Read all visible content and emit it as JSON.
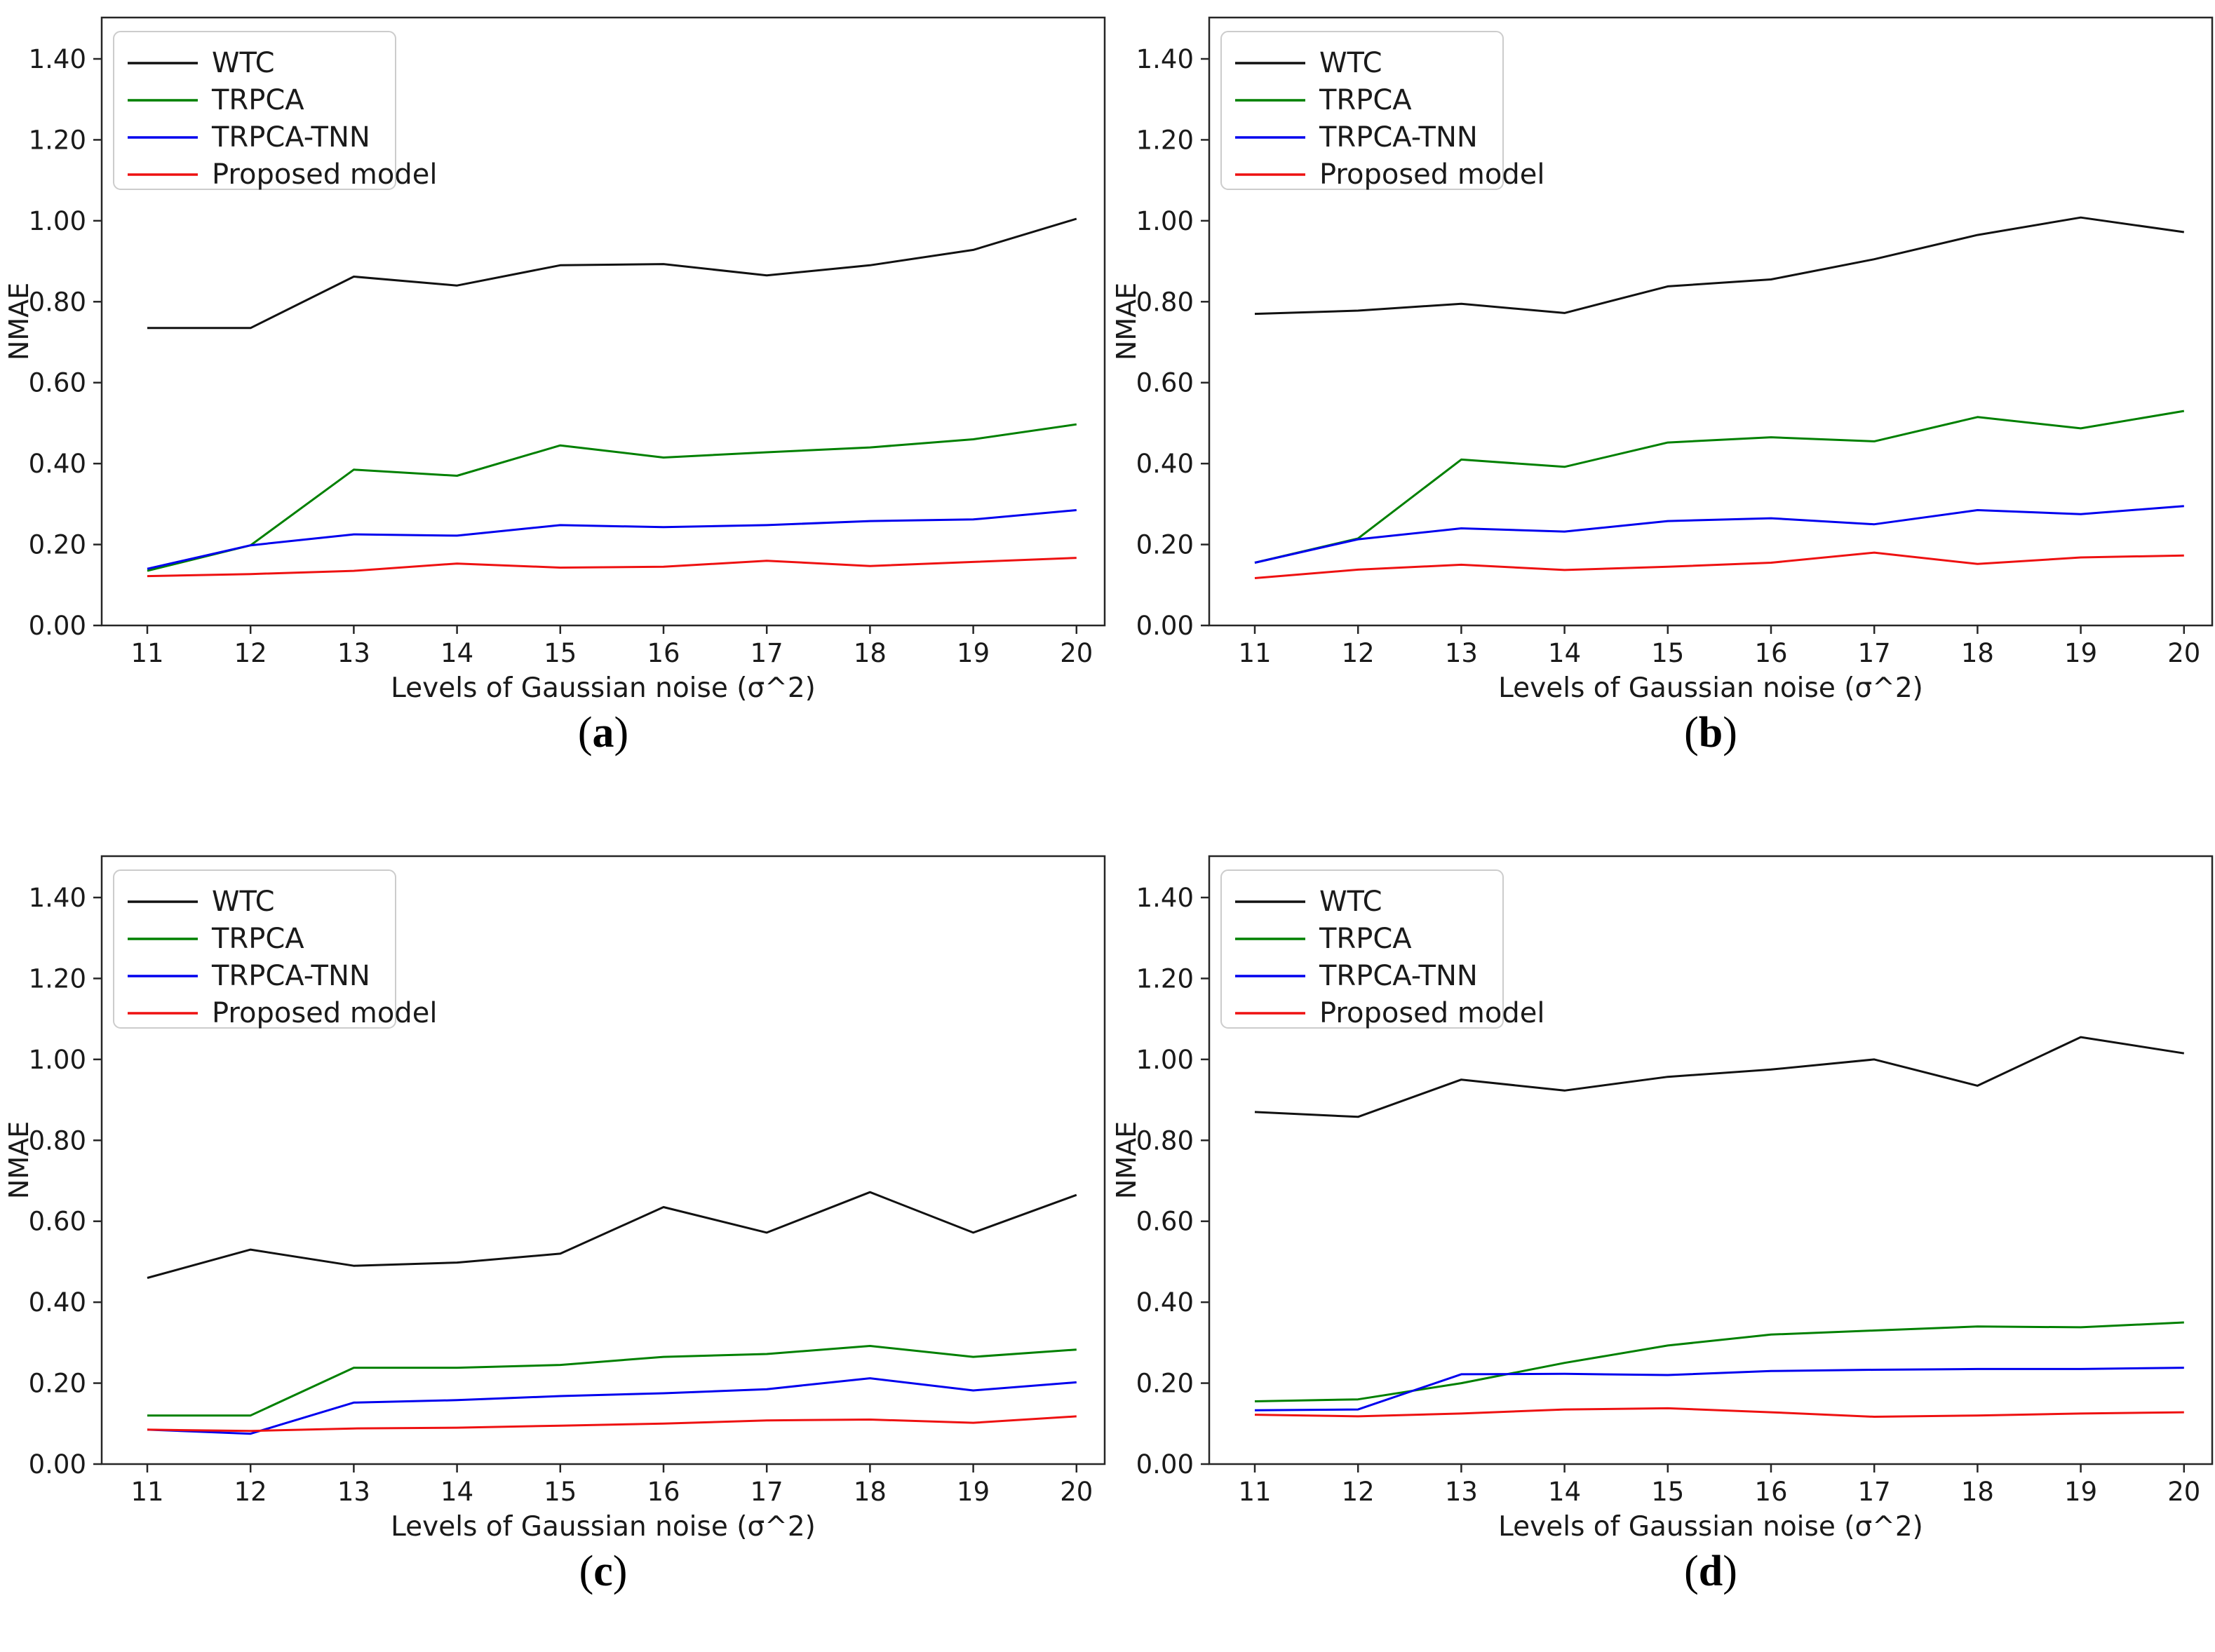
{
  "page": {
    "background": "#ffffff"
  },
  "colors": {
    "wtc": "#111111",
    "trpca": "#008000",
    "trpca_tnn": "#0000ee",
    "proposed": "#ee1111",
    "spine": "#262626",
    "tick_text": "#1a1a1a",
    "legend_border": "#cccccc",
    "legend_bg": "#ffffff"
  },
  "captions": [
    {
      "open": "(",
      "letter": "a",
      "close": ")"
    },
    {
      "open": "(",
      "letter": "b",
      "close": ")"
    },
    {
      "open": "(",
      "letter": "c",
      "close": ")"
    },
    {
      "open": "(",
      "letter": "d",
      "close": ")"
    }
  ],
  "chart_data": [
    {
      "type": "line",
      "panel": "a",
      "xlabel": "Levels of Gaussian noise (σ^2)",
      "ylabel": "NMAE",
      "x": [
        11,
        12,
        13,
        14,
        15,
        16,
        17,
        18,
        19,
        20
      ],
      "xtick_labels": [
        "11",
        "12",
        "13",
        "14",
        "15",
        "16",
        "17",
        "18",
        "19",
        "20"
      ],
      "ylim": [
        0,
        1.5
      ],
      "yticks": [
        0,
        0.2,
        0.4,
        0.6,
        0.8,
        1.0,
        1.2,
        1.4
      ],
      "ytick_labels": [
        "0.00",
        "0.20",
        "0.40",
        "0.60",
        "0.80",
        "1.00",
        "1.20",
        "1.40"
      ],
      "grid": false,
      "legend_position": "upper left",
      "series": [
        {
          "name": "WTC",
          "color": "#111111",
          "values": [
            0.735,
            0.735,
            0.862,
            0.84,
            0.89,
            0.893,
            0.865,
            0.89,
            0.928,
            1.005
          ]
        },
        {
          "name": "TRPCA",
          "color": "#008000",
          "values": [
            0.135,
            0.198,
            0.385,
            0.37,
            0.445,
            0.415,
            0.428,
            0.44,
            0.46,
            0.497
          ]
        },
        {
          "name": "TRPCA-TNN",
          "color": "#0000ee",
          "values": [
            0.14,
            0.198,
            0.225,
            0.222,
            0.248,
            0.243,
            0.248,
            0.258,
            0.262,
            0.285
          ]
        },
        {
          "name": "Proposed model",
          "color": "#ee1111",
          "values": [
            0.122,
            0.127,
            0.135,
            0.153,
            0.143,
            0.145,
            0.16,
            0.147,
            0.157,
            0.167
          ]
        }
      ]
    },
    {
      "type": "line",
      "panel": "b",
      "xlabel": "Levels of Gaussian noise (σ^2)",
      "ylabel": "NMAE",
      "x": [
        11,
        12,
        13,
        14,
        15,
        16,
        17,
        18,
        19,
        20
      ],
      "xtick_labels": [
        "11",
        "12",
        "13",
        "14",
        "15",
        "16",
        "17",
        "18",
        "19",
        "20"
      ],
      "ylim": [
        0,
        1.5
      ],
      "yticks": [
        0,
        0.2,
        0.4,
        0.6,
        0.8,
        1.0,
        1.2,
        1.4
      ],
      "ytick_labels": [
        "0.00",
        "0.20",
        "0.40",
        "0.60",
        "0.80",
        "1.00",
        "1.20",
        "1.40"
      ],
      "grid": false,
      "legend_position": "upper left",
      "series": [
        {
          "name": "WTC",
          "color": "#111111",
          "values": [
            0.77,
            0.778,
            0.795,
            0.772,
            0.838,
            0.855,
            0.905,
            0.965,
            1.008,
            0.972
          ]
        },
        {
          "name": "TRPCA",
          "color": "#008000",
          "values": [
            0.155,
            0.215,
            0.41,
            0.392,
            0.452,
            0.465,
            0.455,
            0.515,
            0.487,
            0.53
          ]
        },
        {
          "name": "TRPCA-TNN",
          "color": "#0000ee",
          "values": [
            0.155,
            0.213,
            0.24,
            0.232,
            0.258,
            0.265,
            0.25,
            0.285,
            0.275,
            0.295
          ]
        },
        {
          "name": "Proposed model",
          "color": "#ee1111",
          "values": [
            0.117,
            0.138,
            0.15,
            0.137,
            0.145,
            0.155,
            0.18,
            0.152,
            0.168,
            0.173
          ]
        }
      ]
    },
    {
      "type": "line",
      "panel": "c",
      "xlabel": "Levels of Gaussian noise (σ^2)",
      "ylabel": "NMAE",
      "x": [
        11,
        12,
        13,
        14,
        15,
        16,
        17,
        18,
        19,
        20
      ],
      "xtick_labels": [
        "11",
        "12",
        "13",
        "14",
        "15",
        "16",
        "17",
        "18",
        "19",
        "20"
      ],
      "ylim": [
        0,
        1.5
      ],
      "yticks": [
        0,
        0.2,
        0.4,
        0.6,
        0.8,
        1.0,
        1.2,
        1.4
      ],
      "ytick_labels": [
        "0.00",
        "0.20",
        "0.40",
        "0.60",
        "0.80",
        "1.00",
        "1.20",
        "1.40"
      ],
      "grid": false,
      "legend_position": "upper left",
      "series": [
        {
          "name": "WTC",
          "color": "#111111",
          "values": [
            0.46,
            0.53,
            0.49,
            0.498,
            0.52,
            0.635,
            0.572,
            0.672,
            0.572,
            0.665
          ]
        },
        {
          "name": "TRPCA",
          "color": "#008000",
          "values": [
            0.12,
            0.12,
            0.238,
            0.238,
            0.245,
            0.265,
            0.272,
            0.292,
            0.265,
            0.283
          ]
        },
        {
          "name": "TRPCA-TNN",
          "color": "#0000ee",
          "values": [
            0.085,
            0.075,
            0.152,
            0.158,
            0.168,
            0.175,
            0.185,
            0.212,
            0.182,
            0.202
          ]
        },
        {
          "name": "Proposed model",
          "color": "#ee1111",
          "values": [
            0.085,
            0.082,
            0.088,
            0.09,
            0.095,
            0.1,
            0.108,
            0.11,
            0.102,
            0.118
          ]
        }
      ]
    },
    {
      "type": "line",
      "panel": "d",
      "xlabel": "Levels of Gaussian noise (σ^2)",
      "ylabel": "NMAE",
      "x": [
        11,
        12,
        13,
        14,
        15,
        16,
        17,
        18,
        19,
        20
      ],
      "xtick_labels": [
        "11",
        "12",
        "13",
        "14",
        "15",
        "16",
        "17",
        "18",
        "19",
        "20"
      ],
      "ylim": [
        0,
        1.5
      ],
      "yticks": [
        0,
        0.2,
        0.4,
        0.6,
        0.8,
        1.0,
        1.2,
        1.4
      ],
      "ytick_labels": [
        "0.00",
        "0.20",
        "0.40",
        "0.60",
        "0.80",
        "1.00",
        "1.20",
        "1.40"
      ],
      "grid": false,
      "legend_position": "upper left",
      "series": [
        {
          "name": "WTC",
          "color": "#111111",
          "values": [
            0.87,
            0.858,
            0.95,
            0.923,
            0.957,
            0.975,
            1.0,
            0.935,
            1.055,
            1.015
          ]
        },
        {
          "name": "TRPCA",
          "color": "#008000",
          "values": [
            0.155,
            0.16,
            0.2,
            0.25,
            0.293,
            0.32,
            0.33,
            0.34,
            0.338,
            0.35
          ]
        },
        {
          "name": "TRPCA-TNN",
          "color": "#0000ee",
          "values": [
            0.133,
            0.135,
            0.222,
            0.223,
            0.22,
            0.23,
            0.233,
            0.235,
            0.235,
            0.238
          ]
        },
        {
          "name": "Proposed model",
          "color": "#ee1111",
          "values": [
            0.122,
            0.118,
            0.125,
            0.135,
            0.138,
            0.128,
            0.117,
            0.12,
            0.125,
            0.128
          ]
        }
      ]
    }
  ]
}
